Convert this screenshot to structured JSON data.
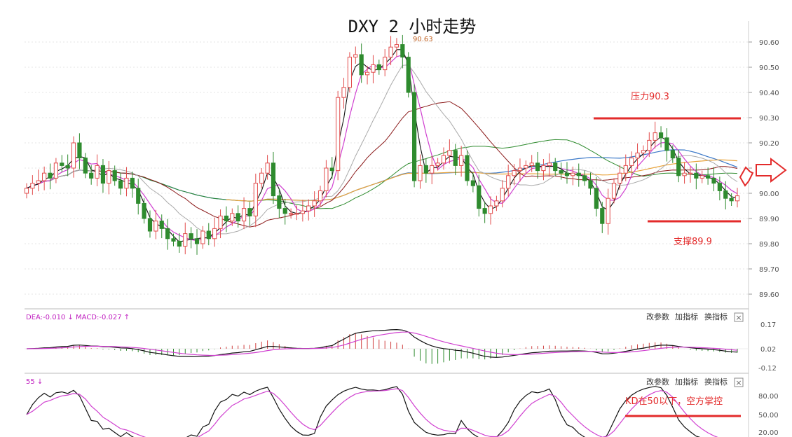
{
  "chart_data": {
    "type": "candlestick",
    "title": "DXY 2 小时走势",
    "ylim": [
      89.55,
      90.65
    ],
    "yticks": [
      "90.60",
      "90.50",
      "90.40",
      "90.30",
      "90.20",
      "90.10",
      "90.00",
      "89.90",
      "89.80",
      "89.70",
      "89.60"
    ],
    "high_label": "90.63",
    "close": [
      90.02,
      90.04,
      90.05,
      90.08,
      90.06,
      90.12,
      90.11,
      90.1,
      90.2,
      90.14,
      90.08,
      90.06,
      90.11,
      90.04,
      90.09,
      90.05,
      90.02,
      90.06,
      90.02,
      89.96,
      89.9,
      89.85,
      89.89,
      89.86,
      89.82,
      89.81,
      89.79,
      89.84,
      89.82,
      89.8,
      89.85,
      89.82,
      89.86,
      89.91,
      89.89,
      89.92,
      89.89,
      89.94,
      89.91,
      90.04,
      90.08,
      90.12,
      89.99,
      89.94,
      89.92,
      89.92,
      89.92,
      89.93,
      89.95,
      89.97,
      90.01,
      90.1,
      90.09,
      90.38,
      90.42,
      90.54,
      90.55,
      90.47,
      90.48,
      90.51,
      90.49,
      90.54,
      90.58,
      90.59,
      90.54,
      90.4,
      90.05,
      90.11,
      90.08,
      90.11,
      90.12,
      90.15,
      90.17,
      90.11,
      90.15,
      90.05,
      90.03,
      89.94,
      89.92,
      89.95,
      89.97,
      90.02,
      90.07,
      90.09,
      90.1,
      90.11,
      90.12,
      90.09,
      90.11,
      90.12,
      90.09,
      90.08,
      90.07,
      90.08,
      90.07,
      90.05,
      90.02,
      89.94,
      89.88,
      89.98,
      90.04,
      90.08,
      90.11,
      90.14,
      90.16,
      90.17,
      90.21,
      90.24,
      90.22,
      90.17,
      90.14,
      90.07,
      90.08,
      90.08,
      90.06,
      90.07,
      90.06,
      90.04,
      90.01,
      89.98,
      89.97,
      89.99
    ],
    "indicators": {
      "macd_label": "DEA:-0.010 ↓ MACD:-0.027 ↑",
      "macd_yticks": [
        "0.17",
        "0.02",
        "-0.12"
      ],
      "kd_label": "55 ↓",
      "kd_yticks": [
        "80.00",
        "50.00",
        "20.00"
      ]
    },
    "annotations": {
      "resistance": {
        "text": "压力90.3",
        "value": 90.3
      },
      "support": {
        "text": "支撑89.9",
        "value": 89.89
      },
      "kd_note": {
        "text": "KD在50以下，空方掌控"
      }
    },
    "colors": {
      "up": "#e24c4c",
      "down": "#2e8b2e",
      "annotation": "#e32b2b"
    }
  },
  "toolbar": {
    "edit_params": "改参数",
    "add_indicator": "加指标",
    "swap_indicator": "换指标",
    "close": "×"
  }
}
